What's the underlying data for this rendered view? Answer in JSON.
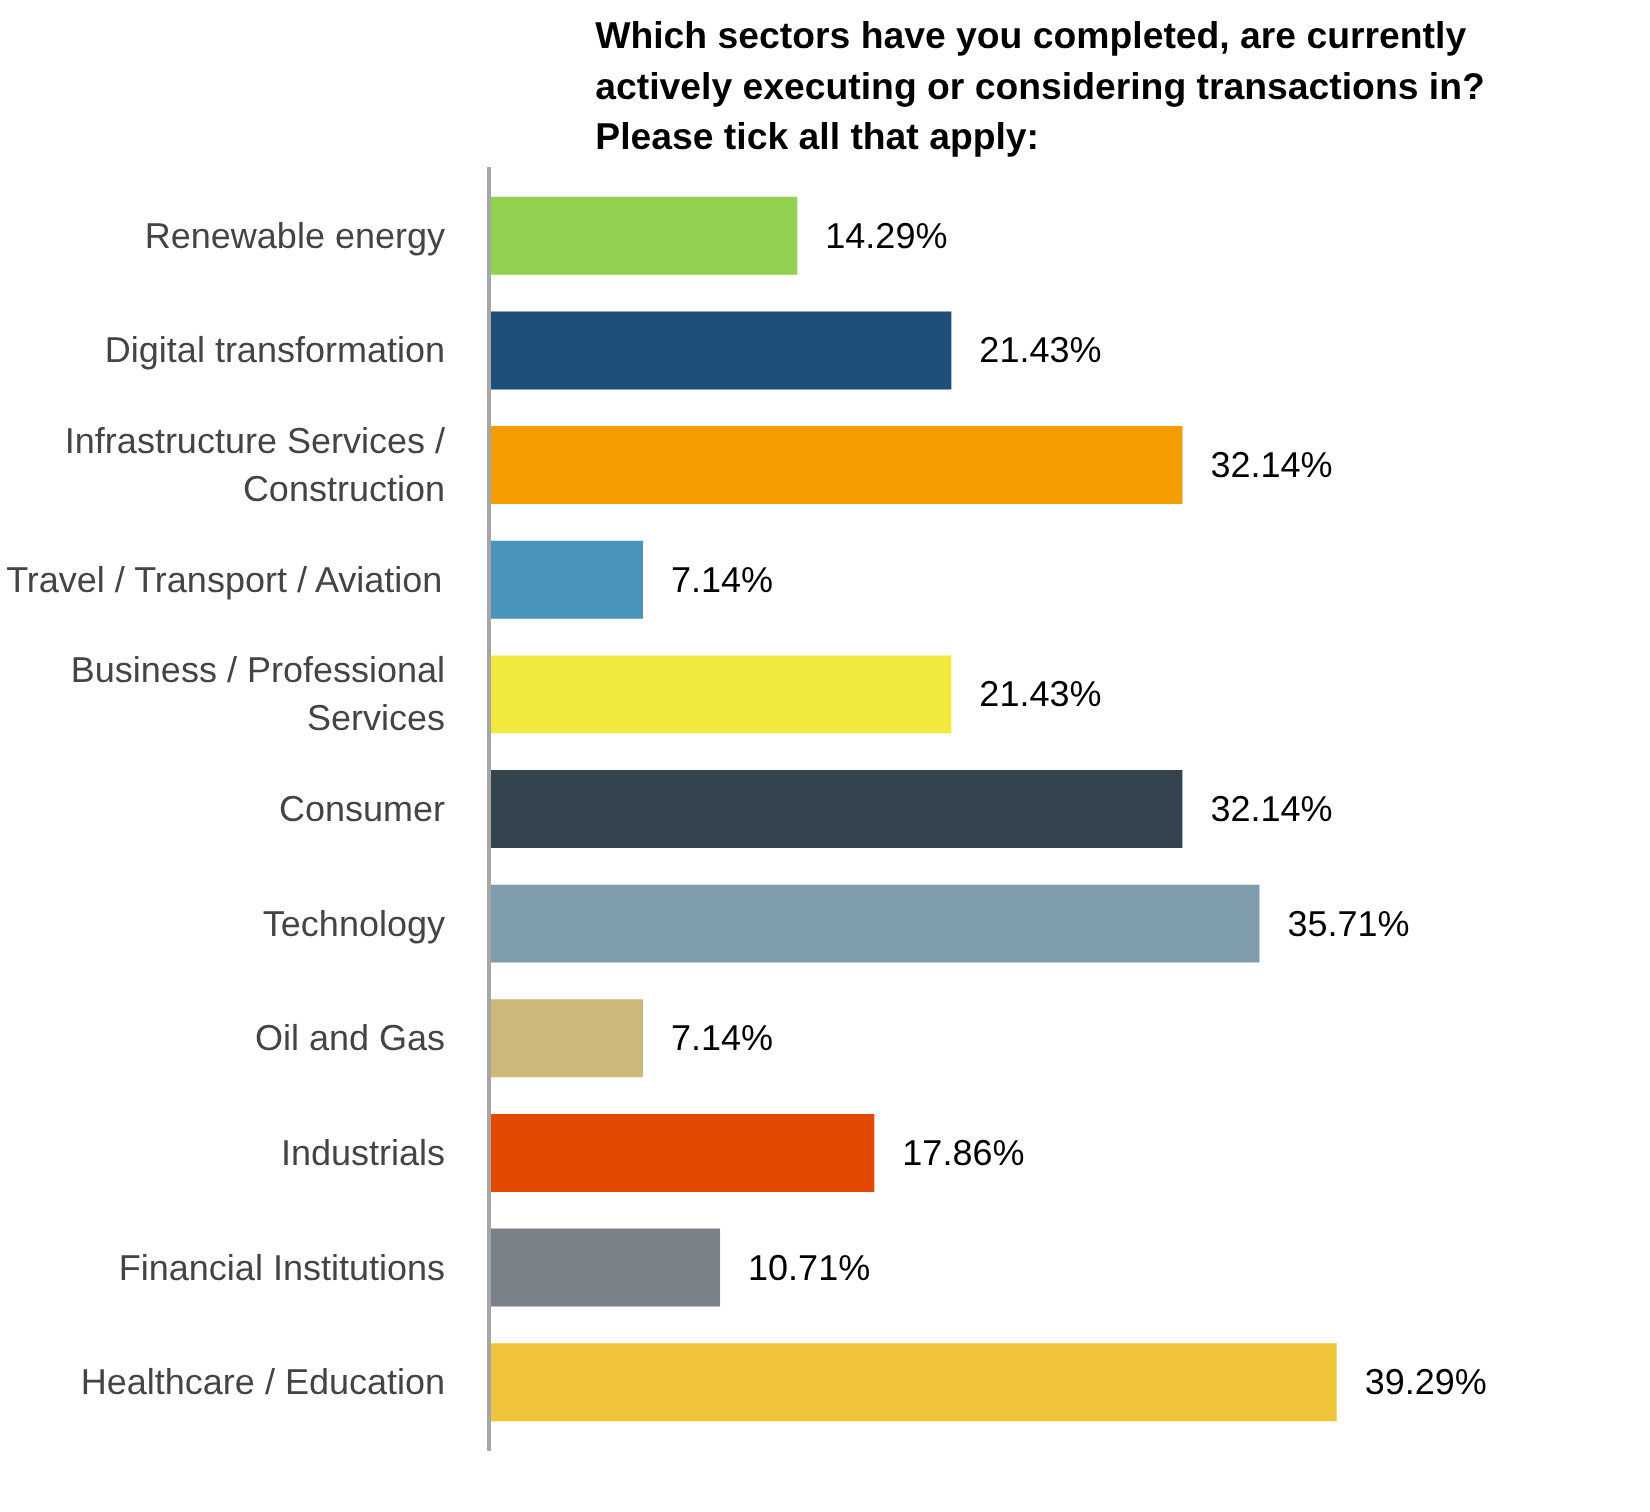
{
  "chart_data": {
    "type": "bar",
    "orientation": "horizontal",
    "title": "Which sectors have you completed, are currently\nactively executing or considering transactions in?\nPlease tick all that apply:",
    "categories": [
      "Renewable energy",
      "Digital transformation",
      "Infrastructure Services /\nConstruction",
      "Travel / Transport / Aviation",
      "Business / Professional\nServices",
      "Consumer",
      "Technology",
      "Oil and Gas",
      "Industrials",
      "Financial Institutions",
      "Healthcare / Education"
    ],
    "values": [
      14.29,
      21.43,
      32.14,
      7.14,
      21.43,
      32.14,
      35.71,
      7.14,
      17.86,
      10.71,
      39.29
    ],
    "colors": [
      "#92d050",
      "#1f4e79",
      "#f59c00",
      "#4a94bb",
      "#f2e93d",
      "#33444f",
      "#7f9cad",
      "#ccb97a",
      "#e34a00",
      "#7a8189",
      "#f0c43a"
    ],
    "value_labels": [
      "14.29%",
      "21.43%",
      "32.14%",
      "7.14%",
      "21.43%",
      "32.14%",
      "35.71%",
      "7.14%",
      "17.86%",
      "10.71%",
      "39.29%"
    ]
  }
}
